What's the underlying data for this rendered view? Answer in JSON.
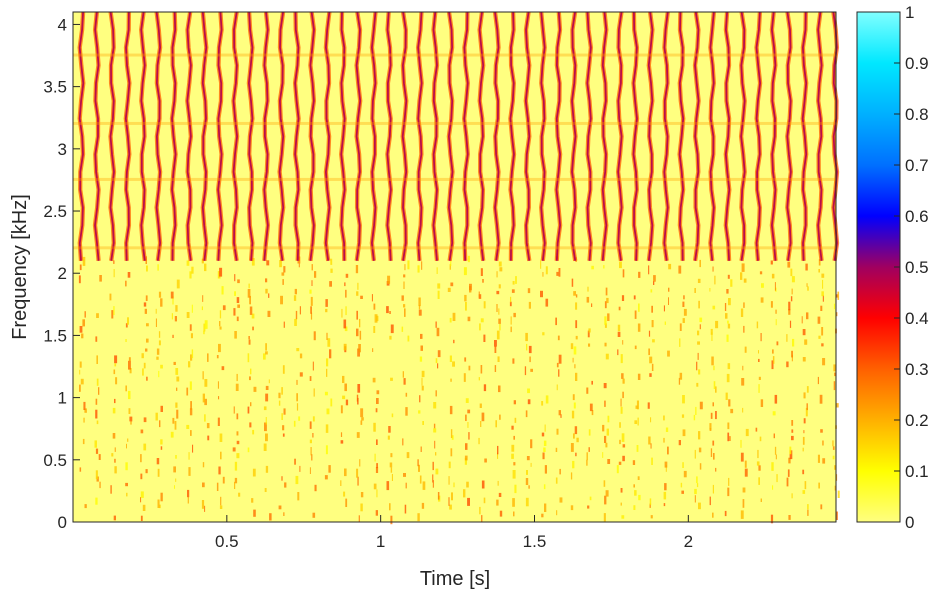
{
  "chart_data": {
    "type": "heatmap",
    "title": "",
    "xlabel": "Time [s]",
    "ylabel": "Frequency [kHz]",
    "xlim": [
      0,
      2.48
    ],
    "ylim": [
      0,
      4.1
    ],
    "xticks": [
      0.5,
      1,
      1.5,
      2
    ],
    "xtick_labels": [
      "0.5",
      "1",
      "1.5",
      "2"
    ],
    "yticks": [
      0,
      0.5,
      1,
      1.5,
      2,
      2.5,
      3,
      3.5,
      4
    ],
    "ytick_labels": [
      "0",
      "0.5",
      "1",
      "1.5",
      "2",
      "2.5",
      "3",
      "3.5",
      "4"
    ],
    "colorbar": {
      "range": [
        0,
        1
      ],
      "ticks": [
        0,
        0.1,
        0.2,
        0.3,
        0.4,
        0.5,
        0.6,
        0.7,
        0.8,
        0.9,
        1
      ],
      "tick_labels": [
        "0",
        "0.1",
        "0.2",
        "0.3",
        "0.4",
        "0.5",
        "0.6",
        "0.7",
        "0.8",
        "0.9",
        "1"
      ],
      "colormap": [
        {
          "v": 0.0,
          "color": "#ffff80"
        },
        {
          "v": 0.1,
          "color": "#ffff00"
        },
        {
          "v": 0.2,
          "color": "#ffb000"
        },
        {
          "v": 0.3,
          "color": "#ff6000"
        },
        {
          "v": 0.4,
          "color": "#ff0000"
        },
        {
          "v": 0.5,
          "color": "#a00060"
        },
        {
          "v": 0.6,
          "color": "#0000ff"
        },
        {
          "v": 0.7,
          "color": "#0070ff"
        },
        {
          "v": 0.8,
          "color": "#00b0ff"
        },
        {
          "v": 0.9,
          "color": "#00e8ff"
        },
        {
          "v": 1.0,
          "color": "#80ffff"
        }
      ]
    },
    "stripe_period_s": 0.05,
    "strong_band_kHz": [
      2.1,
      4.1
    ],
    "grid": false
  }
}
